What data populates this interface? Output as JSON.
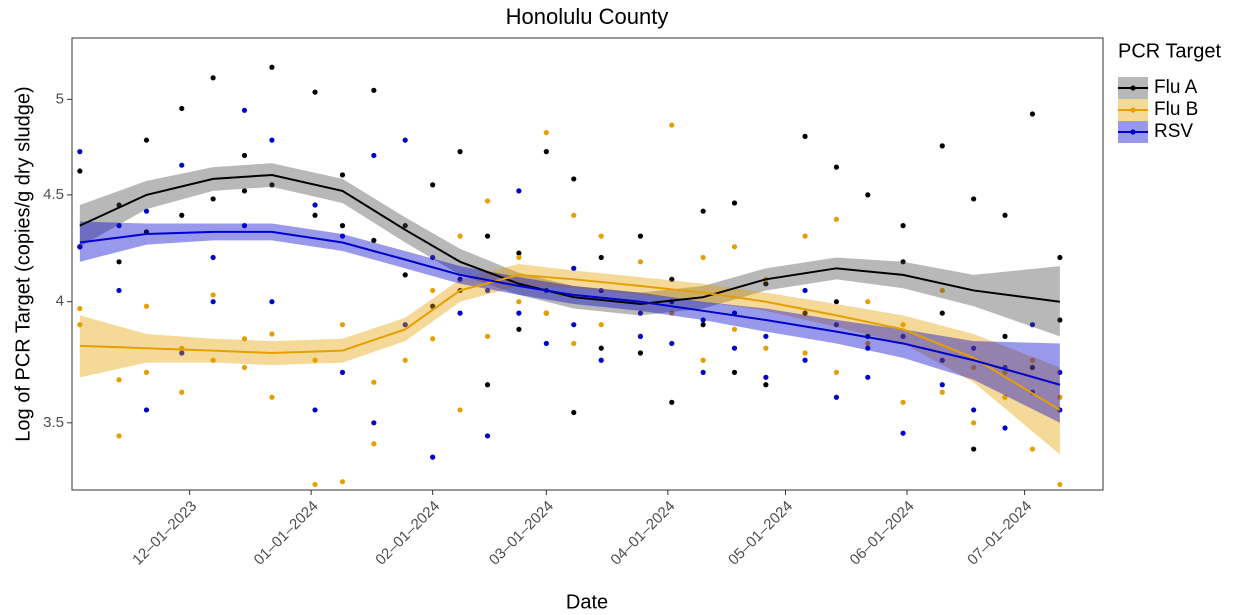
{
  "chart_data": {
    "type": "scatter",
    "title": "Honolulu County",
    "x_label": "Date",
    "y_label": "Log of PCR Target (copies/g dry sludge)",
    "legend_title": "PCR Target",
    "legend_position": "right",
    "log_y": true,
    "xlim": [
      "2023-11-01",
      "2024-07-21"
    ],
    "ylim": [
      3.25,
      5.35
    ],
    "xticks": [
      {
        "value": "2023-12-01",
        "label": "12–01–2023"
      },
      {
        "value": "2024-01-01",
        "label": "01–01–2024"
      },
      {
        "value": "2024-02-01",
        "label": "02–01–2024"
      },
      {
        "value": "2024-03-01",
        "label": "03–01–2024"
      },
      {
        "value": "2024-04-01",
        "label": "04–01–2024"
      },
      {
        "value": "2024-05-01",
        "label": "05–01–2024"
      },
      {
        "value": "2024-06-01",
        "label": "06–01–2024"
      },
      {
        "value": "2024-07-01",
        "label": "07–01–2024"
      }
    ],
    "yticks": [
      3.5,
      4.0,
      4.5,
      5.0
    ],
    "x": [
      "2023-11-03",
      "2023-11-03",
      "2023-11-13",
      "2023-11-13",
      "2023-11-20",
      "2023-11-20",
      "2023-11-29",
      "2023-11-29",
      "2023-12-07",
      "2023-12-07",
      "2023-12-15",
      "2023-12-15",
      "2023-12-22",
      "2023-12-22",
      "2024-01-02",
      "2024-01-02",
      "2024-01-09",
      "2024-01-09",
      "2024-01-17",
      "2024-01-17",
      "2024-01-25",
      "2024-01-25",
      "2024-02-01",
      "2024-02-01",
      "2024-02-08",
      "2024-02-08",
      "2024-02-15",
      "2024-02-15",
      "2024-02-23",
      "2024-02-23",
      "2024-03-01",
      "2024-03-01",
      "2024-03-08",
      "2024-03-08",
      "2024-03-15",
      "2024-03-15",
      "2024-03-25",
      "2024-03-25",
      "2024-04-02",
      "2024-04-02",
      "2024-04-10",
      "2024-04-10",
      "2024-04-18",
      "2024-04-18",
      "2024-04-26",
      "2024-04-26",
      "2024-05-06",
      "2024-05-06",
      "2024-05-14",
      "2024-05-14",
      "2024-05-22",
      "2024-05-22",
      "2024-05-31",
      "2024-05-31",
      "2024-06-10",
      "2024-06-10",
      "2024-06-18",
      "2024-06-18",
      "2024-06-26",
      "2024-06-26",
      "2024-07-03",
      "2024-07-03",
      "2024-07-10",
      "2024-07-10"
    ],
    "smooth_x": [
      "2023-11-03",
      "2023-11-20",
      "2023-12-07",
      "2023-12-22",
      "2024-01-09",
      "2024-01-25",
      "2024-02-08",
      "2024-02-23",
      "2024-03-08",
      "2024-03-25",
      "2024-04-10",
      "2024-04-26",
      "2024-05-14",
      "2024-05-31",
      "2024-06-18",
      "2024-07-10"
    ],
    "series": [
      {
        "name": "Flu A",
        "color": "#000000",
        "band_color": "#4d4d4d",
        "values": [
          4.25,
          4.62,
          4.45,
          4.18,
          4.78,
          4.32,
          4.95,
          4.4,
          5.12,
          4.48,
          4.7,
          4.52,
          5.18,
          4.55,
          5.04,
          4.4,
          4.6,
          4.35,
          5.05,
          4.28,
          4.35,
          4.12,
          4.55,
          3.98,
          4.72,
          4.05,
          4.3,
          3.65,
          4.22,
          3.88,
          4.72,
          3.95,
          4.58,
          3.54,
          4.2,
          3.8,
          4.3,
          3.78,
          4.1,
          3.58,
          4.42,
          3.9,
          4.46,
          3.7,
          4.08,
          3.65,
          4.8,
          3.95,
          4.64,
          4.0,
          4.5,
          3.85,
          4.35,
          4.18,
          4.75,
          3.95,
          4.48,
          3.4,
          4.4,
          3.85,
          4.92,
          3.72,
          4.2,
          3.92
        ],
        "smooth": {
          "fit": [
            4.35,
            4.5,
            4.58,
            4.6,
            4.52,
            4.33,
            4.18,
            4.08,
            4.02,
            3.99,
            4.02,
            4.1,
            4.15,
            4.12,
            4.05,
            4.0
          ],
          "lower": [
            4.25,
            4.43,
            4.52,
            4.54,
            4.46,
            4.27,
            4.12,
            4.03,
            3.97,
            3.94,
            3.97,
            4.05,
            4.1,
            4.06,
            3.98,
            3.85
          ],
          "upper": [
            4.45,
            4.57,
            4.64,
            4.66,
            4.58,
            4.39,
            4.24,
            4.13,
            4.07,
            4.04,
            4.07,
            4.15,
            4.2,
            4.18,
            4.12,
            4.16
          ]
        }
      },
      {
        "name": "Flu B",
        "color": "#E69F00",
        "band_color": "#E69F00",
        "values": [
          3.9,
          3.97,
          3.45,
          3.67,
          3.7,
          3.98,
          3.8,
          3.62,
          4.03,
          3.75,
          3.84,
          3.72,
          3.86,
          3.6,
          3.27,
          3.75,
          3.28,
          3.9,
          3.42,
          3.66,
          3.75,
          3.9,
          4.05,
          3.84,
          4.3,
          3.55,
          4.47,
          3.85,
          4.2,
          4.0,
          4.82,
          3.95,
          4.4,
          3.82,
          4.3,
          3.9,
          4.18,
          3.85,
          4.86,
          3.95,
          4.2,
          3.75,
          4.25,
          3.88,
          4.1,
          3.8,
          4.3,
          3.78,
          4.38,
          3.7,
          4.0,
          3.82,
          3.58,
          3.9,
          4.05,
          3.62,
          3.72,
          3.5,
          3.6,
          3.7,
          3.4,
          3.75,
          3.27,
          3.6
        ],
        "smooth": {
          "fit": [
            3.81,
            3.8,
            3.79,
            3.78,
            3.79,
            3.88,
            4.05,
            4.12,
            4.1,
            4.07,
            4.04,
            4.0,
            3.94,
            3.88,
            3.76,
            3.55
          ],
          "lower": [
            3.68,
            3.74,
            3.74,
            3.73,
            3.74,
            3.83,
            4.0,
            4.07,
            4.06,
            4.03,
            4.0,
            3.96,
            3.89,
            3.82,
            3.66,
            3.38
          ],
          "upper": [
            3.94,
            3.86,
            3.84,
            3.83,
            3.84,
            3.93,
            4.1,
            4.17,
            4.14,
            4.11,
            4.08,
            4.04,
            3.99,
            3.94,
            3.86,
            3.72
          ]
        }
      },
      {
        "name": "RSV",
        "color": "#0000CD",
        "band_color": "#0000CD",
        "values": [
          4.72,
          4.25,
          4.35,
          4.05,
          4.42,
          3.55,
          4.65,
          3.78,
          4.2,
          4.0,
          4.94,
          4.35,
          4.78,
          4.0,
          4.45,
          3.55,
          4.3,
          3.7,
          4.7,
          3.5,
          4.78,
          3.9,
          3.37,
          4.2,
          4.1,
          3.95,
          3.45,
          4.05,
          4.52,
          3.95,
          4.05,
          3.82,
          3.9,
          4.15,
          4.05,
          3.75,
          3.85,
          3.95,
          4.0,
          3.82,
          3.92,
          3.7,
          3.8,
          3.95,
          3.85,
          3.68,
          3.75,
          4.05,
          3.9,
          3.6,
          3.8,
          3.68,
          3.46,
          3.85,
          3.75,
          3.65,
          3.55,
          3.8,
          3.48,
          3.72,
          3.9,
          3.62,
          3.55,
          3.7
        ],
        "smooth": {
          "fit": [
            4.27,
            4.31,
            4.32,
            4.32,
            4.27,
            4.19,
            4.12,
            4.07,
            4.03,
            4.0,
            3.96,
            3.92,
            3.87,
            3.82,
            3.75,
            3.65
          ],
          "lower": [
            4.18,
            4.26,
            4.28,
            4.28,
            4.23,
            4.15,
            4.08,
            4.03,
            3.99,
            3.96,
            3.92,
            3.87,
            3.82,
            3.76,
            3.67,
            3.5
          ],
          "upper": [
            4.37,
            4.36,
            4.36,
            4.36,
            4.31,
            4.23,
            4.16,
            4.11,
            4.07,
            4.04,
            4.0,
            3.97,
            3.92,
            3.88,
            3.83,
            3.82
          ]
        }
      }
    ]
  }
}
